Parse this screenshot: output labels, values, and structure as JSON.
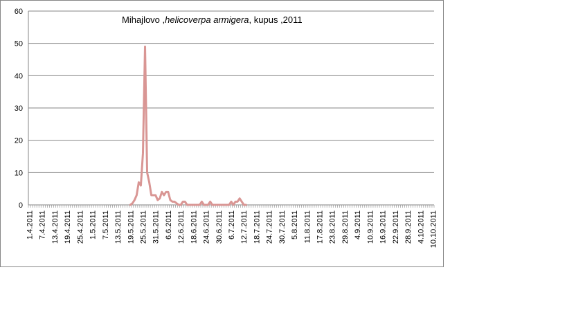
{
  "chart_data": {
    "type": "line",
    "title_parts": {
      "prefix": "Mihajlovo ,",
      "italic": "helicoverpa armigera",
      "suffix": ", kupus ,2011"
    },
    "xlabel": "",
    "ylabel": "",
    "ylim": [
      0,
      60
    ],
    "yticks": [
      0,
      10,
      20,
      30,
      40,
      50,
      60
    ],
    "grid": "horizontal",
    "legend": "none",
    "x_tick_labels": [
      "1.4.2011",
      "7.4.2011",
      "13.4.2011",
      "19.4.2011",
      "25.4.2011",
      "1.5.2011",
      "7.5.2011",
      "13.5.2011",
      "19.5.2011",
      "25.5.2011",
      "31.5.2011",
      "6.6.2011",
      "12.6.2011",
      "18.6.2011",
      "24.6.2011",
      "30.6.2011",
      "6.7.2011",
      "12.7.2011",
      "18.7.2011",
      "24.7.2011",
      "30.7.2011",
      "5.8.2011",
      "11.8.2011",
      "17.8.2011",
      "23.8.2011",
      "29.8.2011",
      "4.9.2011",
      "10.9.2011",
      "16.9.2011",
      "22.9.2011",
      "28.9.2011",
      "4.10.2011",
      "10.10.2011"
    ],
    "x_start": "1.4.2011",
    "x_end": "10.10.2011",
    "series": [
      {
        "color": "#d99694",
        "x": [
          "19.5.2011",
          "20.5.2011",
          "21.5.2011",
          "22.5.2011",
          "23.5.2011",
          "24.5.2011",
          "25.5.2011",
          "26.5.2011",
          "27.5.2011",
          "28.5.2011",
          "29.5.2011",
          "30.5.2011",
          "31.5.2011",
          "1.6.2011",
          "2.6.2011",
          "3.6.2011",
          "4.6.2011",
          "5.6.2011",
          "6.6.2011",
          "7.6.2011",
          "8.6.2011",
          "9.6.2011",
          "10.6.2011",
          "11.6.2011",
          "12.6.2011",
          "13.6.2011",
          "14.6.2011",
          "15.6.2011",
          "16.6.2011",
          "17.6.2011",
          "18.6.2011",
          "19.6.2011",
          "20.6.2011",
          "21.6.2011",
          "22.6.2011",
          "23.6.2011",
          "24.6.2011",
          "25.6.2011",
          "26.6.2011",
          "27.6.2011",
          "28.6.2011",
          "29.6.2011",
          "30.6.2011",
          "1.7.2011",
          "2.7.2011",
          "3.7.2011",
          "4.7.2011",
          "5.7.2011",
          "6.7.2011",
          "7.7.2011",
          "8.7.2011",
          "9.7.2011",
          "10.7.2011",
          "11.7.2011",
          "12.7.2011",
          "13.7.2011"
        ],
        "values": [
          0,
          0.5,
          1.5,
          3,
          7,
          6,
          16,
          49,
          10,
          7,
          3,
          3,
          3,
          1.5,
          2,
          4,
          3,
          4,
          4,
          1.5,
          1,
          1,
          0.5,
          0,
          0,
          1,
          1,
          0,
          0,
          0,
          0,
          0,
          0,
          0,
          1,
          0,
          0,
          0,
          1,
          0,
          0,
          0,
          0,
          0,
          0,
          0,
          0,
          0,
          1,
          0,
          1,
          1,
          2,
          1,
          0,
          0
        ]
      }
    ]
  }
}
